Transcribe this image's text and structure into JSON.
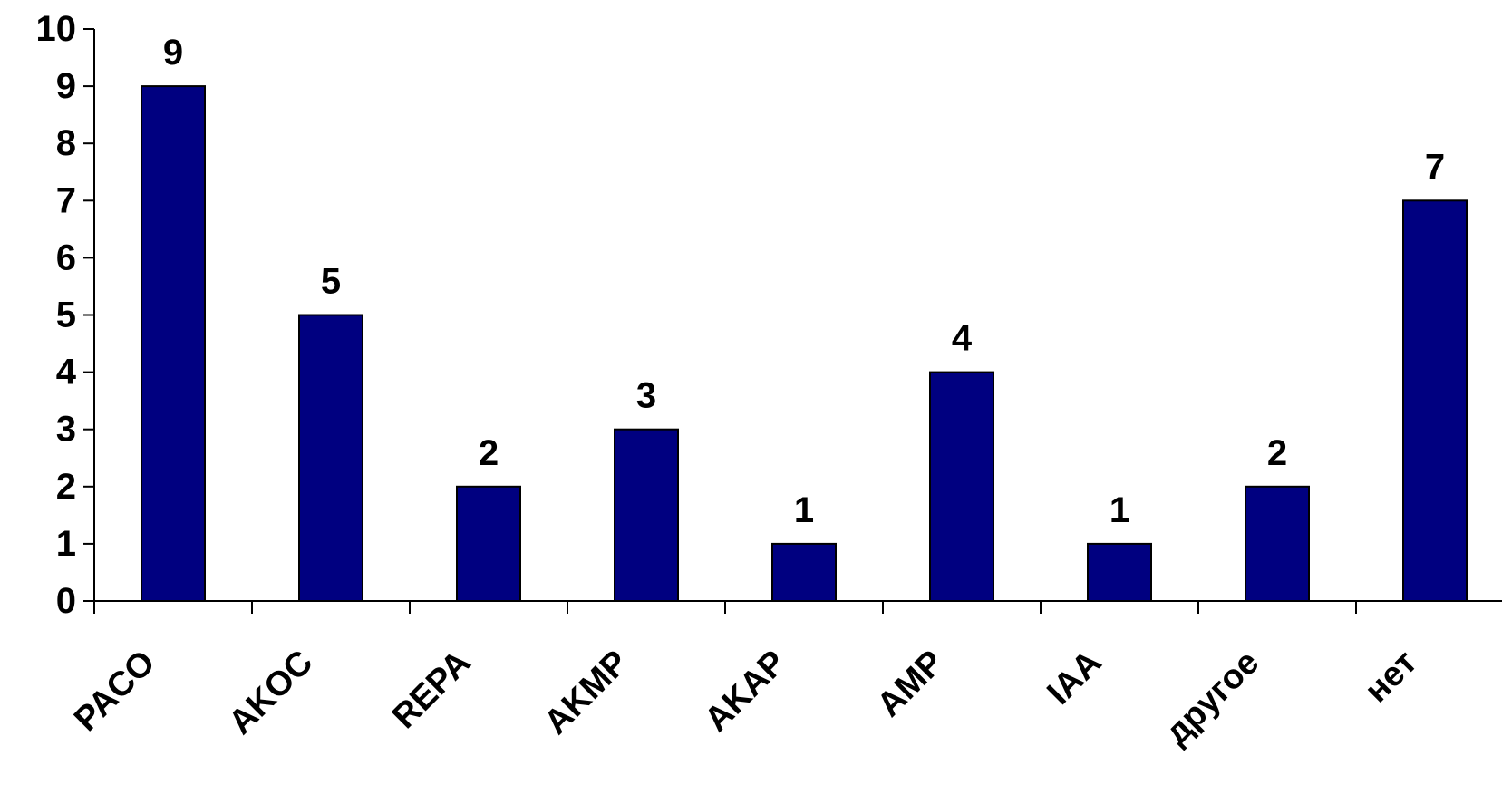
{
  "colors": {
    "bar_fill": "#000080",
    "bar_stroke": "#000000",
    "axis": "#000000",
    "text": "#000000",
    "background": "#ffffff"
  },
  "chart_data": {
    "type": "bar",
    "title": "",
    "xlabel": "",
    "ylabel": "",
    "categories": [
      "PACO",
      "AKOC",
      "REPA",
      "AKMP",
      "AKAP",
      "AMP",
      "IAA",
      "другое",
      "нет"
    ],
    "values": [
      9,
      5,
      2,
      3,
      1,
      4,
      1,
      2,
      7
    ],
    "data_labels": [
      "9",
      "5",
      "2",
      "3",
      "1",
      "4",
      "1",
      "2",
      "7"
    ],
    "ylim": [
      0,
      10
    ],
    "yticks": [
      "0",
      "1",
      "2",
      "3",
      "4",
      "5",
      "6",
      "7",
      "8",
      "9",
      "10"
    ],
    "grid": false,
    "legend": "none",
    "category_label_rotation": "diagonal"
  }
}
